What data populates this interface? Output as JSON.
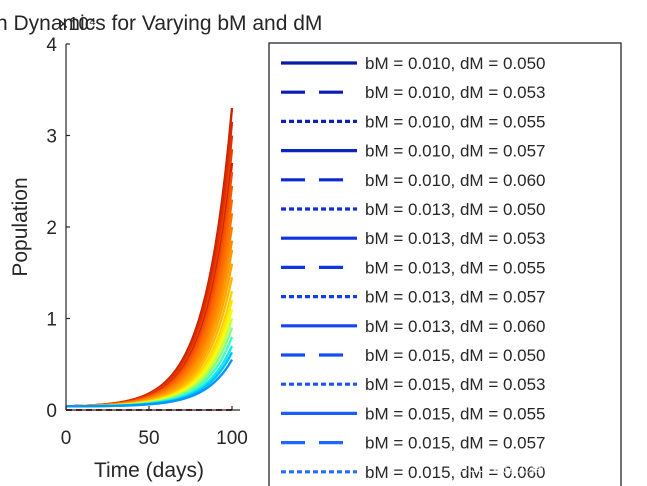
{
  "chart_data": {
    "type": "line",
    "title": "n Dynamics for Varying bM and dM",
    "xlabel": "Time (days)",
    "ylabel": "Population",
    "y_exponent_label": "×10⁴",
    "x_ticks": [
      "0",
      "50",
      "100"
    ],
    "y_ticks": [
      "0",
      "1",
      "2",
      "3",
      "4"
    ],
    "xlim": [
      0,
      100
    ],
    "ylim": [
      0,
      40000
    ],
    "legend_position": "right",
    "legend": [
      {
        "label": "bM = 0.010, dM = 0.050",
        "style": "solid",
        "color": "#0a1aa6"
      },
      {
        "label": "bM = 0.010, dM = 0.053",
        "style": "dashed",
        "color": "#0a1db0"
      },
      {
        "label": "bM = 0.010, dM = 0.055",
        "style": "dotted",
        "color": "#0b20bb"
      },
      {
        "label": "bM = 0.010, dM = 0.057",
        "style": "solid",
        "color": "#0c24c6"
      },
      {
        "label": "bM = 0.010, dM = 0.060",
        "style": "dashed",
        "color": "#0c28d0"
      },
      {
        "label": "bM = 0.013, dM = 0.050",
        "style": "dotted",
        "color": "#0d2cdb"
      },
      {
        "label": "bM = 0.013, dM = 0.053",
        "style": "solid",
        "color": "#0e31e3"
      },
      {
        "label": "bM = 0.013, dM = 0.055",
        "style": "dashed",
        "color": "#0f37ea"
      },
      {
        "label": "bM = 0.013, dM = 0.057",
        "style": "dotted",
        "color": "#113df0"
      },
      {
        "label": "bM = 0.013, dM = 0.060",
        "style": "solid",
        "color": "#1344f5"
      },
      {
        "label": "bM = 0.015, dM = 0.050",
        "style": "dashed",
        "color": "#154cf8"
      },
      {
        "label": "bM = 0.015, dM = 0.053",
        "style": "dotted",
        "color": "#1855fb"
      },
      {
        "label": "bM = 0.015, dM = 0.055",
        "style": "solid",
        "color": "#1b5efd"
      },
      {
        "label": "bM = 0.015, dM = 0.057",
        "style": "dashed",
        "color": "#1e67fe"
      },
      {
        "label": "bM = 0.015, dM = 0.060",
        "style": "dotted",
        "color": "#2170ff"
      }
    ],
    "series_endpoints": [
      {
        "color": "#cc2200",
        "end_value": 33000
      },
      {
        "color": "#d42a00",
        "end_value": 31500
      },
      {
        "color": "#e03300",
        "end_value": 30000
      },
      {
        "color": "#e84000",
        "end_value": 28500
      },
      {
        "color": "#d81e00",
        "end_value": 27000
      },
      {
        "color": "#f04c00",
        "end_value": 26000
      },
      {
        "color": "#f55a00",
        "end_value": 24500
      },
      {
        "color": "#ff6600",
        "end_value": 23000
      },
      {
        "color": "#ff7300",
        "end_value": 21500
      },
      {
        "color": "#ff8000",
        "end_value": 20000
      },
      {
        "color": "#ff8c00",
        "end_value": 18500
      },
      {
        "color": "#ff9900",
        "end_value": 17500
      },
      {
        "color": "#ffa500",
        "end_value": 16000
      },
      {
        "color": "#ffb800",
        "end_value": 14500
      },
      {
        "color": "#ffd000",
        "end_value": 13000
      },
      {
        "color": "#ffe600",
        "end_value": 12000
      },
      {
        "color": "#f0ff10",
        "end_value": 11000
      },
      {
        "color": "#c8ff3a",
        "end_value": 10000
      },
      {
        "color": "#80ff80",
        "end_value": 9000
      },
      {
        "color": "#40ffc0",
        "end_value": 8000
      },
      {
        "color": "#10e8ee",
        "end_value": 7000
      },
      {
        "color": "#00c0ff",
        "end_value": 6300
      },
      {
        "color": "#0096ff",
        "end_value": 5500
      }
    ],
    "baseline_series": {
      "color": "#8b1a1a",
      "style": "dashed",
      "value": 0
    }
  },
  "watermark": "CSDN @上善若水KAP"
}
